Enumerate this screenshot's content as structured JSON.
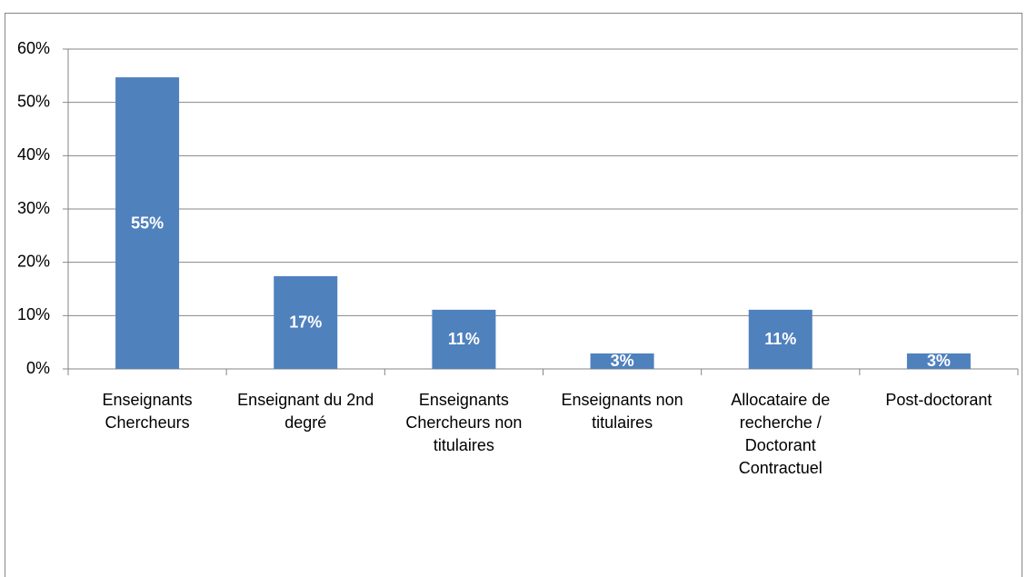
{
  "chart_data": {
    "type": "bar",
    "categories": [
      "Enseignants Chercheurs",
      "Enseignant du 2nd degré",
      "Enseignants Chercheurs non titulaires",
      "Enseignants non titulaires",
      "Allocataire de recherche / Doctorant Contractuel",
      "Post-doctorant"
    ],
    "values": [
      54.7,
      17.4,
      11.1,
      2.9,
      11.1,
      2.9
    ],
    "value_labels": [
      "55%",
      "17%",
      "11%",
      "3%",
      "11%",
      "3%"
    ],
    "color": "#4f81bd",
    "ylim": [
      0,
      60
    ],
    "yticks": [
      {
        "value": 0,
        "label": "0%"
      },
      {
        "value": 10,
        "label": "10%"
      },
      {
        "value": 20,
        "label": "20%"
      },
      {
        "value": 30,
        "label": "30%"
      },
      {
        "value": 40,
        "label": "40%"
      },
      {
        "value": 50,
        "label": "50%"
      },
      {
        "value": 60,
        "label": "60%"
      }
    ],
    "grid": true
  }
}
